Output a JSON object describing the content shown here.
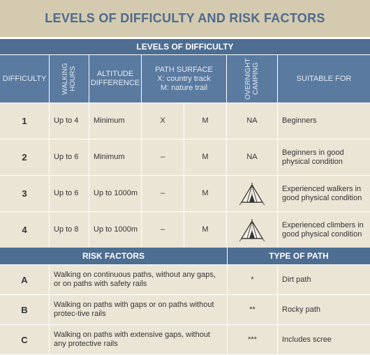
{
  "title": "LEVELS OF DIFFICULTY AND RISK FACTORS",
  "levels_heading": "LEVELS OF DIFFICULTY",
  "columns": {
    "difficulty": "DIFFICULTY",
    "walking_hours": "WALKING HOURS",
    "altitude": "ALTITUDE DIFFERENCE",
    "path_surface_title": "PATH SURFACE",
    "path_surface_x": "X: country track",
    "path_surface_m": "M: nature trail",
    "overnight": "OVERNIGHT CAMPING",
    "suitable": "SUITABLE FOR"
  },
  "levels": [
    {
      "level": "1",
      "hours": "Up to 4",
      "altitude": "Minimum",
      "x": "X",
      "m": "M",
      "camping": "NA",
      "suitable": "Beginners"
    },
    {
      "level": "2",
      "hours": "Up to 6",
      "altitude": "Minimum",
      "x": "–",
      "m": "M",
      "camping": "NA",
      "suitable": "Beginners in good physical condition"
    },
    {
      "level": "3",
      "hours": "Up to 6",
      "altitude": "Up to 1000m",
      "x": "–",
      "m": "M",
      "camping": "tent-icon",
      "suitable": "Experienced walkers in good physical condition"
    },
    {
      "level": "4",
      "hours": "Up to 8",
      "altitude": "Up to 1000m",
      "x": "–",
      "m": "M",
      "camping": "tent-icon",
      "suitable": "Experienced climbers in good physical condition"
    }
  ],
  "risk_heading": "RISK FACTORS",
  "path_heading": "TYPE OF PATH",
  "risks": [
    {
      "code": "A",
      "desc": "Walking on continuous paths, without any gaps, or on paths with safety rails",
      "stars": "*",
      "path": "Dirt path"
    },
    {
      "code": "B",
      "desc": "Walking on paths with gaps or on paths without protec-tive rails",
      "stars": "**",
      "path": "Rocky path"
    },
    {
      "code": "C",
      "desc": "Walking on paths with extensive gaps, without any protective rails",
      "stars": "***",
      "path": "Includes scree"
    }
  ],
  "colors": {
    "title_bg": "#d3cab0",
    "title_text": "#4f6a8c",
    "band": "#4d6d91",
    "header": "#5a7aa0",
    "cell": "#ebe5d6"
  }
}
